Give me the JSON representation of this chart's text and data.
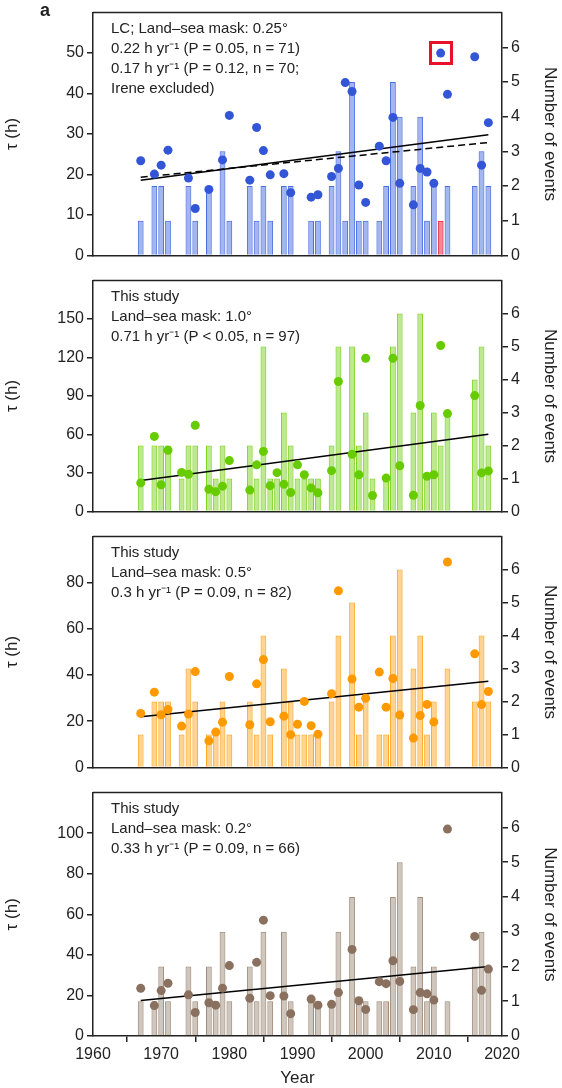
{
  "chart_data": [
    {
      "type": "bar",
      "title": "a",
      "ylabel": "τ (h)",
      "y2label": "Number of events",
      "xlim": [
        1960,
        2020
      ],
      "xticks": [
        1960,
        1970,
        1980,
        1990,
        2000,
        2010,
        2020
      ],
      "ylim": [
        0,
        60
      ],
      "yticks": [
        0,
        10,
        20,
        30,
        40,
        50
      ],
      "y2lim": [
        0,
        7
      ],
      "y2ticks": [
        0,
        1,
        2,
        3,
        4,
        5,
        6
      ],
      "tick_labels": "y",
      "legend": false,
      "grid": false,
      "annotations": [
        "LC; Land–sea mask: 0.25°",
        "0.22 h yr⁻¹ (P = 0.05, n = 71)",
        "0.17 h yr⁻¹ (P = 0.12, n = 70;",
        "Irene excluded)"
      ],
      "series": [
        {
          "axis": "y2",
          "color": "#4a6de0",
          "colors": [
            "#4a6de0",
            "#4a6de0",
            "#4a6de0",
            "#4a6de0",
            "#4a6de0",
            "#4a6de0",
            "#4a6de0",
            "#4a6de0",
            "#4a6de0",
            "#4a6de0",
            "#4a6de0",
            "#4a6de0",
            "#4a6de0",
            "#4a6de0",
            "#4a6de0",
            "#4a6de0",
            "#4a6de0",
            "#4a6de0",
            "#4a6de0",
            "#4a6de0",
            "#4a6de0",
            "#4a6de0",
            "#4a6de0",
            "#4a6de0",
            "#4a6de0",
            "#4a6de0",
            "#4a6de0",
            "#4a6de0",
            "#4a6de0",
            "#4a6de0",
            "#4a6de0",
            "#e8112d",
            "#4a6de0",
            "#4a6de0",
            "#4a6de0",
            "#4a6de0"
          ],
          "x": [
            1967,
            1969,
            1970,
            1971,
            1974,
            1975,
            1977,
            1979,
            1980,
            1983,
            1984,
            1985,
            1986,
            1988,
            1989,
            1992,
            1993,
            1995,
            1996,
            1997,
            1998,
            1999,
            2000,
            2002,
            2003,
            2004,
            2005,
            2007,
            2008,
            2009,
            2010,
            2011,
            2012,
            2016,
            2017,
            2018
          ],
          "values": [
            1,
            2,
            2,
            1,
            2,
            1,
            2,
            3,
            1,
            2,
            1,
            2,
            1,
            2,
            2,
            1,
            1,
            2,
            3,
            1,
            5,
            1,
            1,
            1,
            2,
            5,
            4,
            2,
            4,
            1,
            2,
            1,
            2,
            2,
            3,
            2
          ]
        },
        {
          "type": "scatter",
          "marker": "circle",
          "color": "#3356d6",
          "x": [
            1967,
            1969,
            1970,
            1971,
            1974,
            1975,
            1977,
            1979,
            1980,
            1983,
            1984,
            1985,
            1986,
            1988,
            1989,
            1992,
            1993,
            1995,
            1996,
            1997,
            1998,
            1999,
            2000,
            2002,
            2003,
            2004,
            2005,
            2007,
            2008,
            2009,
            2010,
            2011,
            2012,
            2016,
            2017,
            2018
          ],
          "values": [
            23.4,
            20.1,
            22.3,
            26.0,
            19.1,
            11.6,
            16.3,
            23.6,
            34.6,
            18.6,
            31.6,
            25.9,
            19.9,
            20.2,
            15.5,
            14.4,
            15.0,
            19.5,
            21.5,
            42.7,
            40.5,
            17.4,
            13.1,
            27.0,
            23.4,
            34.1,
            17.8,
            12.5,
            21.5,
            20.6,
            17.8,
            50.0,
            39.8,
            49.1,
            22.3,
            32.8
          ]
        },
        {
          "type": "line",
          "color": "#000000",
          "line_style": "solid",
          "x": [
            1967,
            2018
          ],
          "values": [
            18.6,
            29.8
          ]
        },
        {
          "type": "line",
          "color": "#000000",
          "line_style": "dashed",
          "x": [
            1967,
            2018
          ],
          "values": [
            19.3,
            27.9
          ]
        }
      ]
    },
    {
      "type": "bar",
      "ylabel": "τ (h)",
      "y2label": "Number of events",
      "xlim": [
        1960,
        2020
      ],
      "xticks": [
        1960,
        1970,
        1980,
        1990,
        2000,
        2010,
        2020
      ],
      "ylim": [
        0,
        180
      ],
      "yticks": [
        0,
        30,
        60,
        90,
        120,
        150
      ],
      "y2lim": [
        0,
        7
      ],
      "y2ticks": [
        0,
        1,
        2,
        3,
        4,
        5,
        6
      ],
      "tick_labels": "y",
      "legend": false,
      "grid": false,
      "annotations": [
        "This study",
        "Land–sea mask: 1.0°",
        "0.71 h yr⁻¹ (P < 0.05, n = 97)"
      ],
      "series": [
        {
          "axis": "y2",
          "color": "#7ed321",
          "x": [
            1967,
            1969,
            1970,
            1971,
            1973,
            1974,
            1975,
            1977,
            1978,
            1979,
            1980,
            1983,
            1984,
            1985,
            1986,
            1987,
            1988,
            1989,
            1990,
            1991,
            1992,
            1993,
            1995,
            1996,
            1998,
            1999,
            2000,
            2001,
            2003,
            2004,
            2005,
            2007,
            2008,
            2009,
            2010,
            2011,
            2012,
            2016,
            2017,
            2018
          ],
          "values": [
            2,
            2,
            2,
            2,
            1,
            2,
            2,
            2,
            1,
            2,
            1,
            2,
            1,
            5,
            1,
            1,
            3,
            2,
            1,
            1,
            1,
            1,
            2,
            5,
            5,
            2,
            3,
            1,
            1,
            5,
            6,
            3,
            6,
            1,
            3,
            2,
            3,
            4,
            5,
            2
          ]
        },
        {
          "type": "scatter",
          "marker": "circle",
          "color": "#66cc00",
          "x": [
            1967,
            1969,
            1970,
            1971,
            1973,
            1974,
            1975,
            1977,
            1978,
            1979,
            1980,
            1983,
            1984,
            1985,
            1986,
            1987,
            1988,
            1989,
            1990,
            1991,
            1992,
            1993,
            1995,
            1996,
            1998,
            1999,
            2000,
            2001,
            2003,
            2004,
            2005,
            2007,
            2008,
            2009,
            2010,
            2011,
            2012,
            2016,
            2017,
            2018
          ],
          "values": [
            22.2,
            58.5,
            20.8,
            47.7,
            30.4,
            29.0,
            67.2,
            17.3,
            15.4,
            19.7,
            39.6,
            16.6,
            36.3,
            46.8,
            20.1,
            30.2,
            21.1,
            14.7,
            36.3,
            28.6,
            18.3,
            14.5,
            31.8,
            101.3,
            44.5,
            28.6,
            119.4,
            12.4,
            26.0,
            119.4,
            35.6,
            12.6,
            82.6,
            27.4,
            28.6,
            129.4,
            76.3,
            90.3,
            30.0,
            31.6
          ]
        },
        {
          "type": "line",
          "color": "#000000",
          "line_style": "solid",
          "x": [
            1967,
            2018
          ],
          "values": [
            24.1,
            60.1
          ]
        }
      ]
    },
    {
      "type": "bar",
      "ylabel": "τ (h)",
      "y2label": "Number of events",
      "xlim": [
        1960,
        2020
      ],
      "xticks": [
        1960,
        1970,
        1980,
        1990,
        2000,
        2010,
        2020
      ],
      "ylim": [
        0,
        100
      ],
      "yticks": [
        0,
        20,
        40,
        60,
        80
      ],
      "y2lim": [
        0,
        7
      ],
      "y2ticks": [
        0,
        1,
        2,
        3,
        4,
        5,
        6
      ],
      "tick_labels": "y",
      "legend": false,
      "grid": false,
      "annotations": [
        "This study",
        "Land–sea mask: 0.5°",
        "0.3 h yr⁻¹ (P = 0.09, n = 82)"
      ],
      "series": [
        {
          "axis": "y2",
          "color": "#ffa826",
          "x": [
            1967,
            1969,
            1970,
            1971,
            1973,
            1974,
            1975,
            1977,
            1978,
            1979,
            1980,
            1983,
            1984,
            1985,
            1986,
            1988,
            1989,
            1990,
            1991,
            1992,
            1993,
            1995,
            1996,
            1998,
            1999,
            2000,
            2002,
            2003,
            2004,
            2005,
            2007,
            2008,
            2009,
            2010,
            2012,
            2016,
            2017,
            2018
          ],
          "values": [
            1,
            2,
            2,
            2,
            1,
            3,
            2,
            1,
            1,
            2,
            1,
            2,
            1,
            4,
            1,
            3,
            2,
            1,
            1,
            1,
            1,
            2,
            4,
            5,
            1,
            2,
            1,
            1,
            4,
            6,
            3,
            4,
            1,
            2,
            3,
            2,
            4,
            2
          ]
        },
        {
          "type": "scatter",
          "marker": "circle",
          "color": "#ff9900",
          "x": [
            1967,
            1969,
            1970,
            1971,
            1973,
            1974,
            1975,
            1977,
            1978,
            1979,
            1980,
            1983,
            1984,
            1985,
            1986,
            1988,
            1989,
            1990,
            1991,
            1992,
            1993,
            1995,
            1996,
            1998,
            1999,
            2000,
            2002,
            2003,
            2004,
            2005,
            2007,
            2008,
            2009,
            2010,
            2012,
            2016,
            2017,
            2018
          ],
          "values": [
            23.4,
            32.6,
            22.8,
            25.1,
            17.9,
            23.1,
            41.5,
            11.5,
            15.3,
            19.6,
            39.4,
            18.5,
            36.2,
            46.7,
            19.8,
            22.2,
            14.2,
            18.7,
            28.6,
            18.1,
            14.4,
            31.9,
            76.5,
            38.3,
            26.1,
            30.0,
            41.3,
            26.1,
            38.5,
            22.7,
            12.7,
            22.5,
            27.3,
            19.7,
            89.0,
            49.2,
            27.2,
            32.9
          ]
        },
        {
          "type": "line",
          "color": "#000000",
          "line_style": "solid",
          "x": [
            1967,
            2018
          ],
          "values": [
            21.9,
            37.3
          ]
        }
      ]
    },
    {
      "type": "bar",
      "ylabel": "τ (h)",
      "y2label": "Number of events",
      "xlabel": "Year",
      "xlim": [
        1960,
        2020
      ],
      "xticks": [
        1960,
        1970,
        1980,
        1990,
        2000,
        2010,
        2020
      ],
      "ylim": [
        0,
        120
      ],
      "yticks": [
        0,
        20,
        40,
        60,
        80,
        100
      ],
      "y2lim": [
        0,
        7
      ],
      "y2ticks": [
        0,
        1,
        2,
        3,
        4,
        5,
        6
      ],
      "legend": false,
      "grid": false,
      "annotations": [
        "This study",
        "Land–sea mask: 0.2°",
        "0.33 h yr⁻¹ (P = 0.09, n = 66)"
      ],
      "series": [
        {
          "axis": "y2",
          "color": "#a08d7c",
          "x": [
            1967,
            1969,
            1970,
            1971,
            1974,
            1975,
            1977,
            1978,
            1979,
            1980,
            1983,
            1984,
            1985,
            1986,
            1988,
            1989,
            1992,
            1993,
            1995,
            1996,
            1998,
            1999,
            2000,
            2002,
            2003,
            2004,
            2005,
            2007,
            2008,
            2009,
            2010,
            2012,
            2016,
            2017,
            2018
          ],
          "values": [
            1,
            1,
            2,
            1,
            2,
            1,
            2,
            1,
            3,
            1,
            2,
            1,
            3,
            1,
            3,
            1,
            1,
            1,
            1,
            3,
            4,
            1,
            1,
            1,
            1,
            4,
            5,
            2,
            4,
            1,
            2,
            1,
            2,
            3,
            2
          ]
        },
        {
          "type": "scatter",
          "marker": "circle",
          "color": "#8a715f",
          "x": [
            1967,
            1969,
            1970,
            1971,
            1974,
            1975,
            1977,
            1978,
            1979,
            1980,
            1983,
            1984,
            1985,
            1986,
            1988,
            1989,
            1992,
            1993,
            1995,
            1996,
            1998,
            1999,
            2000,
            2002,
            2003,
            2004,
            2005,
            2007,
            2008,
            2009,
            2010,
            2012,
            2016,
            2017,
            2018
          ],
          "values": [
            23.5,
            15.0,
            22.4,
            26.0,
            20.3,
            11.6,
            16.4,
            15.2,
            23.6,
            34.7,
            18.6,
            36.3,
            57.1,
            19.9,
            19.7,
            11.0,
            18.2,
            15.2,
            15.6,
            21.4,
            42.7,
            17.4,
            13.1,
            26.8,
            25.8,
            37.1,
            26.9,
            13.0,
            21.4,
            20.8,
            17.7,
            102.0,
            49.1,
            22.5,
            33.0
          ]
        },
        {
          "type": "line",
          "color": "#000000",
          "line_style": "solid",
          "x": [
            1967,
            2018
          ],
          "values": [
            17.5,
            34.3
          ]
        }
      ]
    }
  ]
}
